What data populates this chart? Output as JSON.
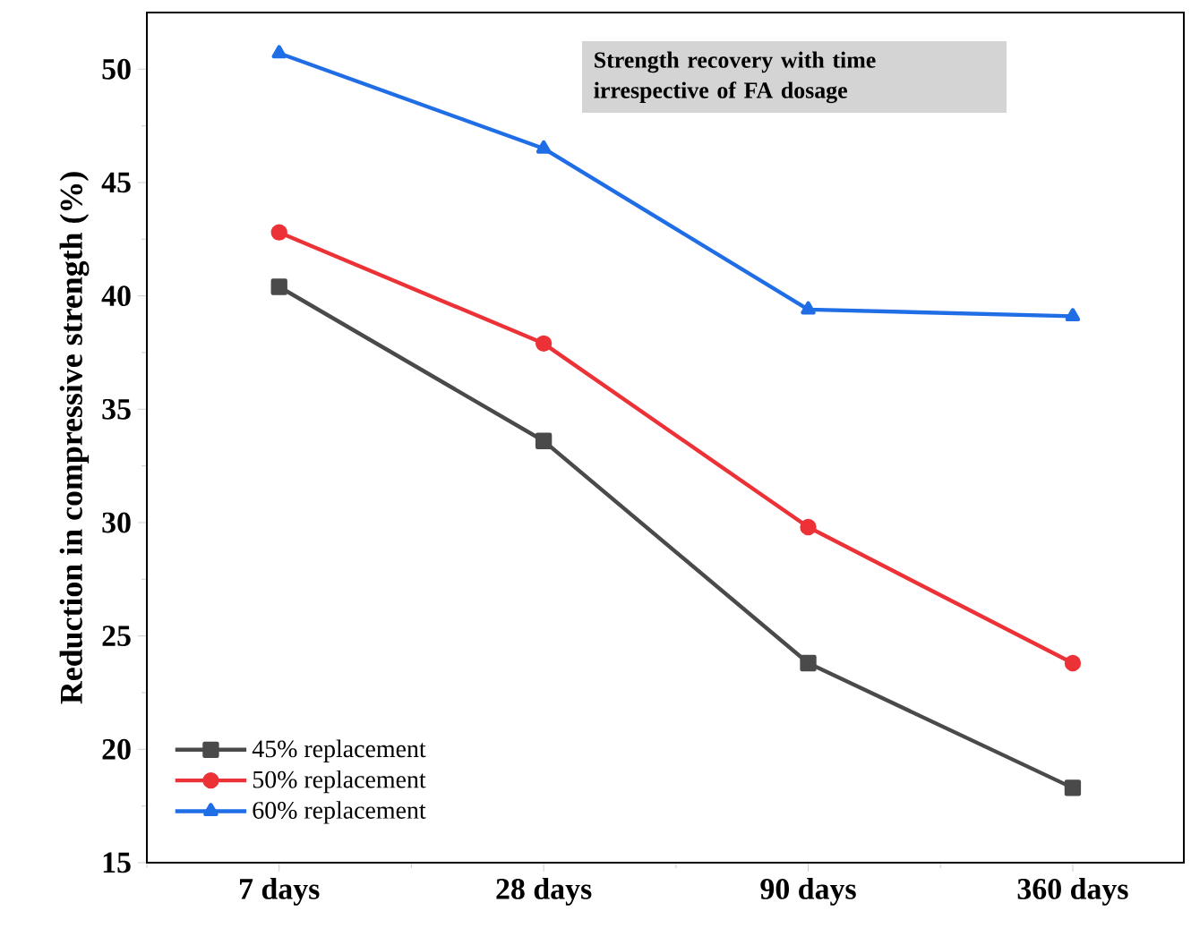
{
  "chart_data": {
    "type": "line",
    "ylabel": "Reduction in compressive strength (%)",
    "categories": [
      "7 days",
      "28 days",
      "90 days",
      "360 days"
    ],
    "series": [
      {
        "name": "45% replacement",
        "color": "#4a4a4a",
        "marker": "square",
        "values": [
          40.4,
          33.6,
          23.8,
          18.3
        ]
      },
      {
        "name": "50% replacement",
        "color": "#ec3237",
        "marker": "circle",
        "values": [
          42.8,
          37.9,
          29.8,
          23.8
        ]
      },
      {
        "name": "60% replacement",
        "color": "#1f6ee6",
        "marker": "triangle",
        "values": [
          50.7,
          46.5,
          39.4,
          39.1
        ]
      }
    ],
    "annotations": [
      "Strength recovery with time irrespective of FA dosage"
    ],
    "ylim": [
      15,
      52.5
    ],
    "yticks": [
      15,
      20,
      25,
      30,
      35,
      40,
      45,
      50
    ],
    "grid": false,
    "legend": "bottom left",
    "line_style": "solid"
  }
}
